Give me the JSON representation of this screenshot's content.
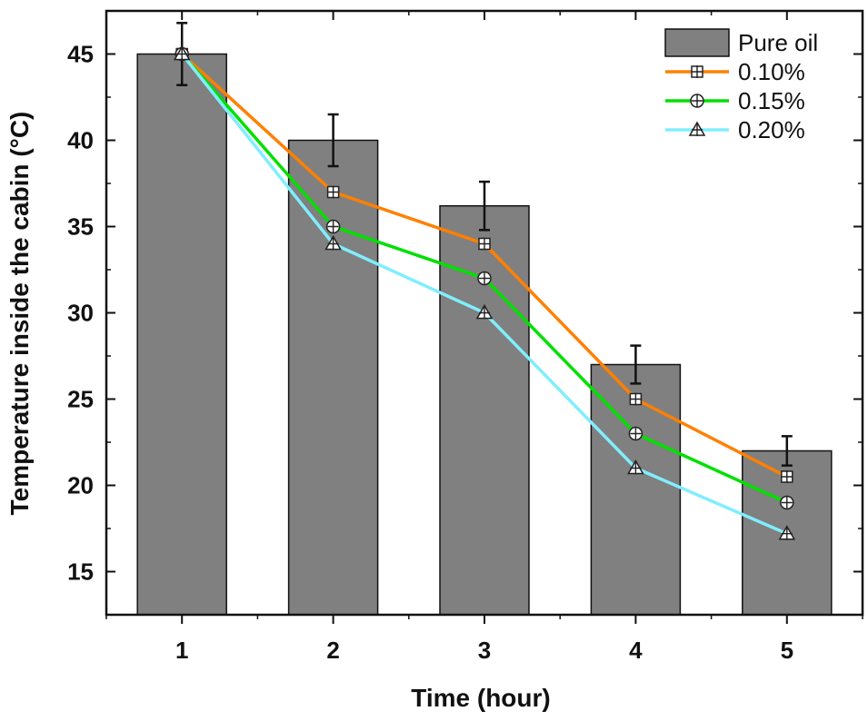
{
  "chart_data": {
    "type": "bar",
    "title": "",
    "xlabel": "Time (hour)",
    "ylabel": "Temperature inside the cabin (°C)",
    "categories": [
      "1",
      "2",
      "3",
      "4",
      "5"
    ],
    "x": [
      1,
      2,
      3,
      4,
      5
    ],
    "xlim": [
      0.5,
      5.5
    ],
    "ylim": [
      12.5,
      47.5
    ],
    "yticks": [
      15,
      20,
      25,
      30,
      35,
      40,
      45
    ],
    "ytick_labels": [
      "15",
      "20",
      "25",
      "30",
      "35",
      "40",
      "45"
    ],
    "grid": false,
    "legend_position": "top-right",
    "bars": {
      "name": "Pure oil",
      "values": [
        45,
        40,
        36.2,
        27,
        22
      ],
      "errors": [
        1.8,
        1.5,
        1.4,
        1.1,
        0.85
      ],
      "color": "#808080"
    },
    "series": [
      {
        "name": "0.10%",
        "values": [
          45,
          37,
          34,
          25,
          20.5
        ],
        "color": "#ff8000",
        "marker": "square-cross"
      },
      {
        "name": "0.15%",
        "values": [
          45,
          35,
          32,
          23,
          19
        ],
        "color": "#00e000",
        "marker": "circle-cross"
      },
      {
        "name": "0.20%",
        "values": [
          45,
          34,
          30,
          21,
          17.2
        ],
        "color": "#80eeff",
        "marker": "triangle-cross"
      }
    ]
  }
}
